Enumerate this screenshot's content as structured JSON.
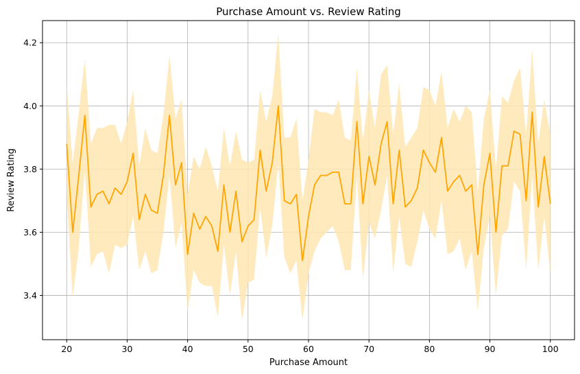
{
  "chart_data": {
    "type": "line",
    "title": "Purchase Amount vs. Review Rating",
    "xlabel": "Purchase Amount",
    "ylabel": "Review Rating",
    "xlim": [
      16,
      104
    ],
    "ylim": [
      3.26,
      4.27
    ],
    "xticks": [
      20,
      30,
      40,
      50,
      60,
      70,
      80,
      90,
      100
    ],
    "yticks": [
      3.4,
      3.6,
      3.8,
      4.0,
      4.2
    ],
    "ytick_labels": [
      "3.4",
      "3.6",
      "3.8",
      "4.0",
      "4.2"
    ],
    "grid": true,
    "line_color": "#FFA500",
    "band_color": "#FFE6B3",
    "series": [
      {
        "x": [
          20,
          21,
          22,
          23,
          24,
          25,
          26,
          27,
          28,
          29,
          30,
          31,
          32,
          33,
          34,
          35,
          36,
          37,
          38,
          39,
          40,
          41,
          42,
          43,
          44,
          45,
          46,
          47,
          48,
          49,
          50,
          51,
          52,
          53,
          54,
          55,
          56,
          57,
          58,
          59,
          60,
          61,
          62,
          63,
          64,
          65,
          66,
          67,
          68,
          69,
          70,
          71,
          72,
          73,
          74,
          75,
          76,
          77,
          78,
          79,
          80,
          81,
          82,
          83,
          84,
          85,
          86,
          87,
          88,
          89,
          90,
          91,
          92,
          93,
          94,
          95,
          96,
          97,
          98,
          99,
          100
        ],
        "y": [
          3.88,
          3.6,
          3.78,
          3.97,
          3.68,
          3.72,
          3.73,
          3.69,
          3.74,
          3.72,
          3.76,
          3.85,
          3.64,
          3.72,
          3.67,
          3.66,
          3.78,
          3.97,
          3.75,
          3.82,
          3.53,
          3.66,
          3.61,
          3.65,
          3.62,
          3.54,
          3.75,
          3.6,
          3.73,
          3.57,
          3.62,
          3.64,
          3.86,
          3.73,
          3.82,
          4.0,
          3.7,
          3.69,
          3.72,
          3.51,
          3.65,
          3.75,
          3.78,
          3.78,
          3.79,
          3.79,
          3.69,
          3.69,
          3.95,
          3.69,
          3.84,
          3.75,
          3.88,
          3.95,
          3.69,
          3.86,
          3.68,
          3.7,
          3.74,
          3.86,
          3.82,
          3.79,
          3.9,
          3.73,
          3.76,
          3.78,
          3.73,
          3.75,
          3.53,
          3.75,
          3.85,
          3.6,
          3.81,
          3.81,
          3.92,
          3.91,
          3.7,
          3.98,
          3.68,
          3.84,
          3.69
        ],
        "lower": [
          3.72,
          3.39,
          3.55,
          3.8,
          3.49,
          3.53,
          3.54,
          3.47,
          3.56,
          3.55,
          3.56,
          3.65,
          3.48,
          3.54,
          3.47,
          3.48,
          3.6,
          3.78,
          3.55,
          3.63,
          3.35,
          3.48,
          3.44,
          3.43,
          3.43,
          3.33,
          3.56,
          3.4,
          3.54,
          3.32,
          3.44,
          3.45,
          3.68,
          3.52,
          3.62,
          3.82,
          3.52,
          3.47,
          3.51,
          3.32,
          3.47,
          3.54,
          3.58,
          3.6,
          3.62,
          3.57,
          3.48,
          3.48,
          3.78,
          3.45,
          3.63,
          3.58,
          3.67,
          3.78,
          3.47,
          3.65,
          3.5,
          3.49,
          3.57,
          3.67,
          3.61,
          3.58,
          3.7,
          3.53,
          3.54,
          3.58,
          3.48,
          3.54,
          3.35,
          3.55,
          3.65,
          3.4,
          3.59,
          3.61,
          3.76,
          3.73,
          3.48,
          3.78,
          3.48,
          3.65,
          3.47
        ],
        "upper": [
          4.07,
          3.82,
          3.98,
          4.15,
          3.88,
          3.93,
          3.93,
          3.94,
          3.94,
          3.88,
          3.95,
          4.05,
          3.81,
          3.93,
          3.86,
          3.85,
          3.97,
          4.16,
          3.96,
          4.02,
          3.72,
          3.84,
          3.8,
          3.87,
          3.81,
          3.73,
          3.93,
          3.81,
          3.92,
          3.83,
          3.82,
          3.83,
          4.05,
          3.95,
          4.03,
          4.23,
          3.9,
          3.9,
          3.96,
          3.7,
          3.83,
          3.99,
          3.98,
          3.98,
          3.97,
          4.02,
          3.9,
          3.89,
          4.12,
          3.89,
          4.05,
          3.93,
          4.1,
          4.13,
          3.91,
          4.07,
          3.87,
          3.9,
          3.93,
          4.06,
          4.05,
          4.0,
          4.11,
          3.93,
          3.99,
          3.95,
          4.0,
          3.98,
          3.73,
          3.96,
          4.05,
          3.8,
          4.03,
          4.01,
          4.08,
          4.12,
          3.91,
          4.18,
          3.88,
          4.02,
          3.91
        ]
      }
    ]
  }
}
